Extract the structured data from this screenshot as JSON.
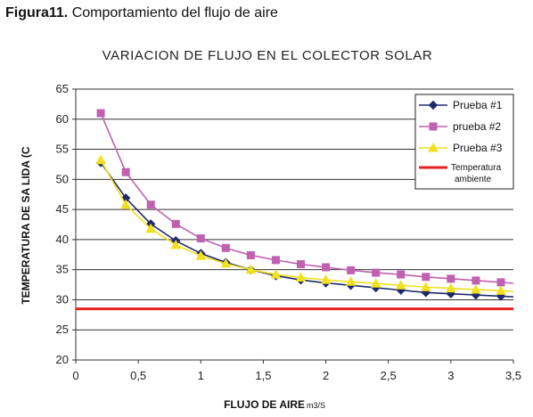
{
  "caption": {
    "number": "Figura11.",
    "text": "Comportamiento del flujo de aire"
  },
  "chart_data": {
    "type": "line",
    "title": "VARIACION DE FLUJO EN EL COLECTOR SOLAR",
    "xlabel": "FLUJO DE AIRE",
    "xlabel_unit": "m3/S",
    "ylabel": "TEMPERATURA DE SA LIDA (C",
    "xlim": [
      0,
      3.5
    ],
    "ylim": [
      20,
      65
    ],
    "xticks": [
      0,
      0.5,
      1,
      1.5,
      2,
      2.5,
      3,
      3.5
    ],
    "xtick_labels": [
      "0",
      "0,5",
      "1",
      "1,5",
      "2",
      "2,5",
      "3",
      "3,5"
    ],
    "yticks": [
      20,
      25,
      30,
      35,
      40,
      45,
      50,
      55,
      60,
      65
    ],
    "ytick_labels": [
      "20",
      "25",
      "30",
      "35",
      "40",
      "45",
      "50",
      "55",
      "60",
      "65"
    ],
    "grid": "horizontal",
    "legend_position": "top-right",
    "series": [
      {
        "name": "Prueba #1",
        "color": "#1f2a6b",
        "marker": "diamond",
        "x": [
          0.2,
          0.4,
          0.6,
          0.8,
          1.0,
          1.2,
          1.4,
          1.6,
          1.8,
          2.0,
          2.2,
          2.4,
          2.6,
          2.8,
          3.0,
          3.2,
          3.4
        ],
        "y": [
          52.8,
          46.9,
          42.6,
          39.8,
          37.7,
          36.2,
          35.0,
          34.0,
          33.3,
          32.8,
          32.4,
          32.0,
          31.6,
          31.2,
          31.0,
          30.8,
          30.6
        ]
      },
      {
        "name": "prueba #2",
        "color": "#c060b0",
        "marker": "square",
        "x": [
          0.2,
          0.4,
          0.6,
          0.8,
          1.0,
          1.2,
          1.4,
          1.6,
          1.8,
          2.0,
          2.2,
          2.4,
          2.6,
          2.8,
          3.0,
          3.2,
          3.4
        ],
        "y": [
          61.0,
          51.2,
          45.8,
          42.6,
          40.2,
          38.6,
          37.4,
          36.6,
          35.9,
          35.4,
          34.9,
          34.5,
          34.2,
          33.8,
          33.5,
          33.2,
          32.9
        ]
      },
      {
        "name": "Prueba #3",
        "color": "#f0e020",
        "marker": "triangle",
        "x": [
          0.2,
          0.4,
          0.6,
          0.8,
          1.0,
          1.2,
          1.4,
          1.6,
          1.8,
          2.0,
          2.2,
          2.4,
          2.6,
          2.8,
          3.0,
          3.2,
          3.4
        ],
        "y": [
          53.2,
          45.8,
          41.8,
          39.1,
          37.3,
          36.0,
          35.0,
          34.2,
          33.7,
          33.3,
          33.0,
          32.7,
          32.4,
          32.1,
          31.9,
          31.7,
          31.5
        ]
      },
      {
        "name": "Temperatura ambiente",
        "color": "#e8201c",
        "marker": "none",
        "x": [
          0,
          3.5
        ],
        "y": [
          28.5,
          28.5
        ]
      }
    ]
  }
}
